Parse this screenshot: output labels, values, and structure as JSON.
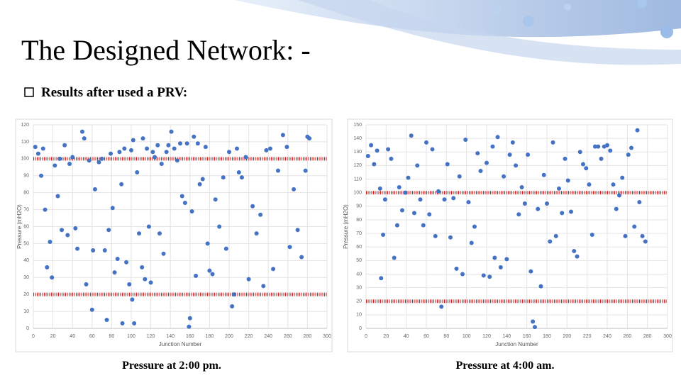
{
  "title": "The Designed Network: -",
  "subtitle": "Results after used a PRV:",
  "chart_data": [
    {
      "type": "scatter",
      "caption": "Pressure at 2:00 pm.",
      "x_label": "Junction Number",
      "y_label": "Pressure (mH2O)",
      "color": "#4472c4",
      "grid": true,
      "reference_lines": [
        100,
        20
      ],
      "reference_color": "#c00000",
      "xlim": [
        0,
        300
      ],
      "xticks": [
        0,
        20,
        40,
        60,
        80,
        100,
        120,
        140,
        160,
        180,
        200,
        220,
        240,
        260,
        280,
        300
      ],
      "ylim": [
        0,
        120
      ],
      "yticks": [
        0,
        10,
        20,
        30,
        40,
        50,
        60,
        70,
        80,
        90,
        100,
        110,
        120
      ],
      "x": [
        2,
        5,
        8,
        10,
        12,
        14,
        17,
        19,
        22,
        25,
        27,
        29,
        32,
        35,
        37,
        40,
        43,
        45,
        50,
        52,
        54,
        57,
        60,
        61,
        63,
        67,
        70,
        73,
        75,
        77,
        79,
        81,
        83,
        86,
        88,
        90,
        91,
        93,
        95,
        98,
        100,
        101,
        102,
        103,
        106,
        108,
        111,
        112,
        114,
        116,
        118,
        120,
        122,
        124,
        127,
        129,
        131,
        133,
        136,
        138,
        141,
        144,
        147,
        150,
        152,
        155,
        157,
        159,
        160,
        162,
        164,
        166,
        168,
        170,
        173,
        176,
        178,
        180,
        183,
        186,
        190,
        194,
        197,
        200,
        203,
        205,
        208,
        210,
        213,
        217,
        220,
        224,
        228,
        232,
        235,
        238,
        242,
        245,
        250,
        255,
        259,
        262,
        266,
        270,
        274,
        278,
        280,
        282
      ],
      "values": [
        107,
        103,
        90,
        106,
        70,
        36,
        51,
        30,
        96,
        78,
        100,
        58,
        108,
        55,
        97,
        101,
        59,
        47,
        116,
        112,
        26,
        99,
        11,
        46,
        82,
        98,
        100,
        46,
        5,
        58,
        103,
        71,
        33,
        41,
        104,
        85,
        3,
        106,
        39,
        26,
        105,
        17,
        111,
        3,
        92,
        56,
        36,
        112,
        29,
        106,
        60,
        27,
        104,
        101,
        108,
        56,
        97,
        44,
        104,
        108,
        116,
        106,
        99,
        109,
        78,
        74,
        109,
        1,
        6,
        69,
        113,
        31,
        109,
        85,
        88,
        107,
        50,
        34,
        32,
        76,
        60,
        89,
        47,
        104,
        13,
        20,
        106,
        92,
        89,
        101,
        29,
        72,
        56,
        67,
        25,
        105,
        106,
        35,
        93,
        114,
        107,
        48,
        82,
        58,
        42,
        93,
        113,
        112
      ]
    },
    {
      "type": "scatter",
      "caption": "Pressure at 4:00 am.",
      "x_label": "Junction Number",
      "y_label": "Pressure (mH2O)",
      "color": "#4472c4",
      "grid": true,
      "reference_lines": [
        100,
        20
      ],
      "reference_color": "#c00000",
      "xlim": [
        0,
        300
      ],
      "xticks": [
        0,
        20,
        40,
        60,
        80,
        100,
        120,
        140,
        160,
        180,
        200,
        220,
        240,
        260,
        280,
        300
      ],
      "ylim": [
        0,
        150
      ],
      "yticks": [
        0,
        10,
        20,
        30,
        40,
        50,
        60,
        70,
        80,
        90,
        100,
        110,
        120,
        130,
        140,
        150
      ],
      "x": [
        2,
        5,
        8,
        11,
        14,
        15,
        17,
        19,
        22,
        25,
        28,
        31,
        33,
        36,
        39,
        42,
        45,
        48,
        51,
        54,
        57,
        60,
        63,
        66,
        69,
        72,
        75,
        78,
        81,
        84,
        87,
        90,
        93,
        96,
        99,
        102,
        105,
        108,
        111,
        114,
        117,
        120,
        123,
        126,
        128,
        131,
        134,
        137,
        140,
        143,
        146,
        149,
        152,
        155,
        158,
        161,
        164,
        166,
        168,
        171,
        174,
        177,
        180,
        183,
        186,
        189,
        192,
        195,
        198,
        201,
        204,
        207,
        210,
        213,
        216,
        219,
        222,
        225,
        228,
        231,
        234,
        237,
        240,
        243,
        246,
        249,
        252,
        255,
        258,
        261,
        264,
        267,
        270,
        272,
        275,
        278
      ],
      "values": [
        127,
        135,
        121,
        131,
        103,
        37,
        69,
        95,
        132,
        125,
        52,
        76,
        104,
        87,
        100,
        111,
        142,
        85,
        120,
        95,
        76,
        137,
        84,
        132,
        68,
        101,
        16,
        95,
        121,
        67,
        96,
        44,
        112,
        40,
        139,
        93,
        63,
        75,
        129,
        116,
        39,
        122,
        38,
        134,
        52,
        141,
        45,
        112,
        51,
        128,
        137,
        120,
        84,
        104,
        92,
        128,
        42,
        5,
        1,
        88,
        31,
        113,
        92,
        64,
        137,
        68,
        103,
        85,
        125,
        109,
        86,
        57,
        53,
        130,
        121,
        118,
        106,
        69,
        134,
        134,
        125,
        134,
        135,
        131,
        106,
        88,
        98,
        111,
        68,
        128,
        133,
        75,
        146,
        93,
        68,
        64
      ]
    }
  ]
}
